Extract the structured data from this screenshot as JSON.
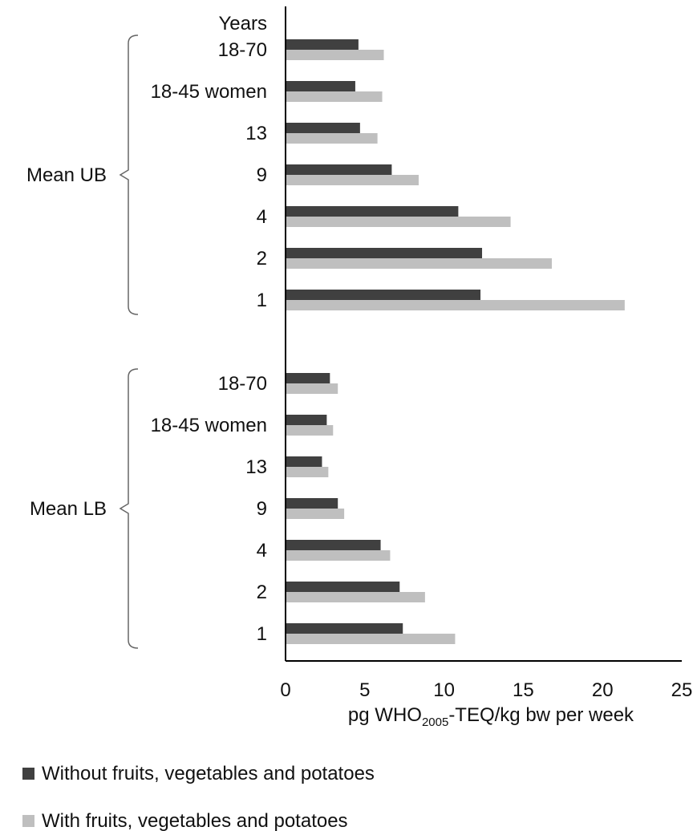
{
  "chart_data": {
    "type": "bar",
    "orientation": "horizontal",
    "category_header": "Years",
    "xlabel": {
      "prefix": "pg WHO",
      "subscript": "2005",
      "suffix": "-TEQ/kg bw per week"
    },
    "xlim": [
      0,
      25
    ],
    "xticks": [
      "0",
      "5",
      "10",
      "15",
      "20",
      "25"
    ],
    "grid": false,
    "legend_position": "bottom-left",
    "series": [
      {
        "name": "Without fruits, vegetables and potatoes",
        "color": "#404040"
      },
      {
        "name": "With fruits, vegetables and potatoes",
        "color": "#bfbfbf"
      }
    ],
    "groups": [
      {
        "label": "Mean UB",
        "categories": [
          "18-70",
          "18-45 women",
          "13",
          "9",
          "4",
          "2",
          "1"
        ],
        "values": [
          [
            4.6,
            4.4,
            4.7,
            6.7,
            10.9,
            12.4,
            12.3
          ],
          [
            6.2,
            6.1,
            5.8,
            8.4,
            14.2,
            16.8,
            21.4
          ]
        ]
      },
      {
        "label": "Mean LB",
        "categories": [
          "18-70",
          "18-45 women",
          "13",
          "9",
          "4",
          "2",
          "1"
        ],
        "values": [
          [
            2.8,
            2.6,
            2.3,
            3.3,
            6.0,
            7.2,
            7.4
          ],
          [
            3.3,
            3.0,
            2.7,
            3.7,
            6.6,
            8.8,
            10.7
          ]
        ]
      }
    ]
  }
}
